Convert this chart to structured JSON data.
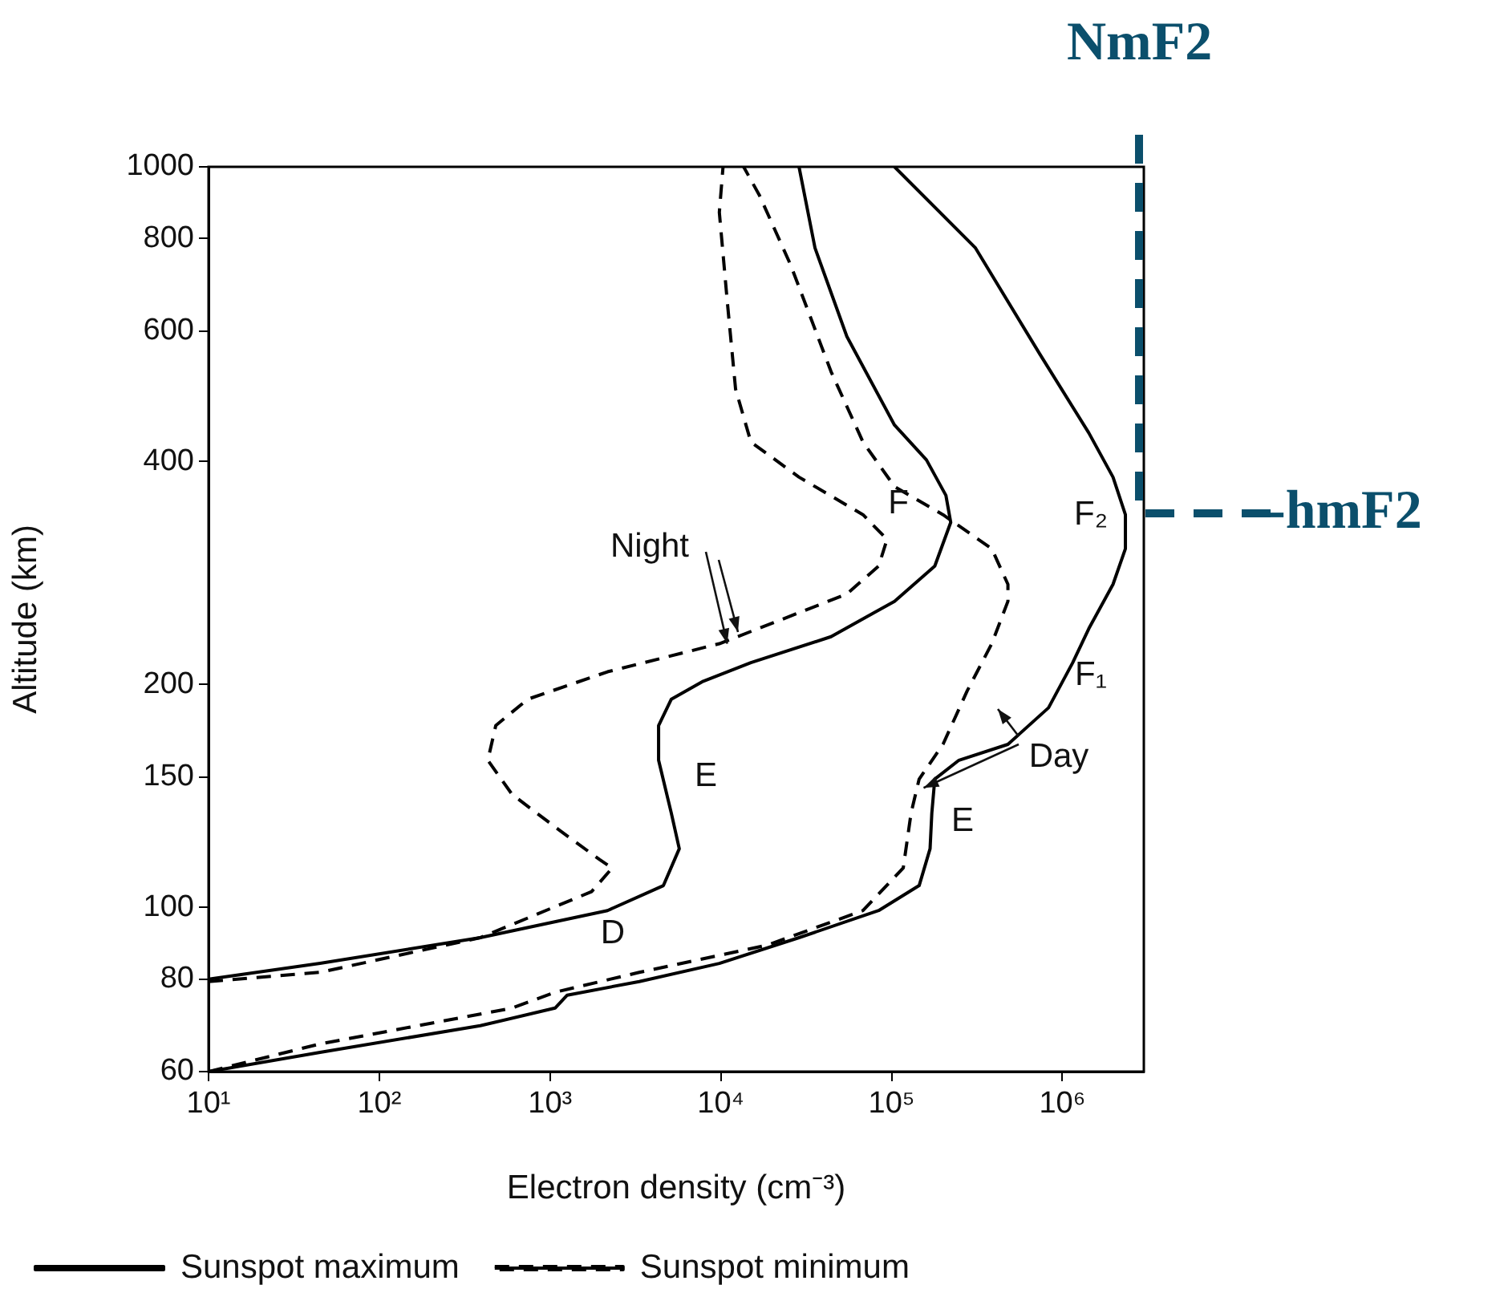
{
  "chart_data": {
    "type": "line",
    "xlabel": "Electron density (cm⁻³)",
    "ylabel": "Altitude (km)",
    "log": "xy",
    "grid": false,
    "legend": "bottom",
    "marker": "none",
    "xlim": [
      10,
      3000000
    ],
    "ylim": [
      60,
      1000
    ],
    "xticks": [
      {
        "value": 10,
        "label": "10¹"
      },
      {
        "value": 100,
        "label": "10²"
      },
      {
        "value": 1000,
        "label": "10³"
      },
      {
        "value": 10000,
        "label": "10⁴"
      },
      {
        "value": 100000,
        "label": "10⁵"
      },
      {
        "value": 1000000,
        "label": "10⁶"
      }
    ],
    "yticks": [
      60,
      80,
      100,
      150,
      200,
      400,
      600,
      800,
      1000
    ],
    "series": [
      {
        "name": "Sunspot maximum",
        "color": "#000000",
        "line_style": "solid",
        "x": [
          10,
          45,
          390,
          2170,
          4610,
          5710,
          5130,
          4320,
          4320,
          5130,
          7890,
          15000,
          44200,
          104000,
          179000,
          222000,
          208000,
          160000,
          104000,
          54700,
          35600,
          28700
        ],
        "values": [
          80,
          84,
          91,
          99,
          107,
          120,
          134,
          158,
          176,
          191,
          202,
          214,
          232,
          259,
          289,
          331,
          360,
          402,
          448,
          590,
          777,
          1000
        ]
      },
      {
        "name": "Sunspot minimum",
        "color": "#000000",
        "line_style": "dashed",
        "x": [
          10,
          45,
          390,
          1750,
          2310,
          1950,
          1140,
          600,
          432,
          481,
          740,
          2170,
          9800,
          23000,
          54700,
          84000,
          94000,
          68000,
          28700,
          15000,
          12200,
          10900,
          9800,
          10300
        ],
        "values": [
          79.4,
          81.7,
          91,
          105,
          113,
          116,
          127,
          142,
          158,
          176,
          191,
          208,
          227,
          245,
          265,
          289,
          314,
          339,
          381,
          425,
          501,
          659,
          868,
          1000
        ]
      },
      {
        "color": "#000000",
        "line_style": "solid",
        "x": [
          10,
          45,
          390,
          1070,
          1260,
          3330,
          9800,
          28700,
          84000,
          145000,
          168000,
          172000,
          179000,
          248000,
          480000,
          830000,
          1150000,
          1430000,
          1980000,
          2340000,
          2340000,
          1980000,
          1430000,
          740000,
          310000,
          104000
        ],
        "values": [
          60,
          63.7,
          69.2,
          73.1,
          76.1,
          79.4,
          84,
          91,
          99,
          107,
          120,
          134,
          149,
          158,
          166,
          186,
          214,
          238,
          273,
          305,
          339,
          381,
          437,
          558,
          777,
          1000
        ]
      },
      {
        "color": "#000000",
        "line_style": "dashed",
        "x": [
          10,
          45,
          600,
          1070,
          3330,
          18700,
          68000,
          117000,
          130000,
          145000,
          200000,
          277000,
          386000,
          480000,
          480000,
          386000,
          200000,
          104000,
          68000,
          44200,
          25700,
          16800,
          13600
        ],
        "values": [
          60,
          65.4,
          73.1,
          76.8,
          81.7,
          88.9,
          99,
          113,
          134,
          149,
          166,
          196,
          227,
          259,
          273,
          305,
          339,
          370,
          425,
          529,
          736,
          916,
          1000
        ]
      }
    ],
    "annotations": [
      "F",
      {
        "text": "Night",
        "x": 10900,
        "y": 227
      },
      "E",
      "F₂",
      "F₁",
      {
        "text": "Day",
        "x": 154000,
        "y": 145
      },
      "E",
      "D",
      "NmF2",
      "-hmF2"
    ]
  }
}
